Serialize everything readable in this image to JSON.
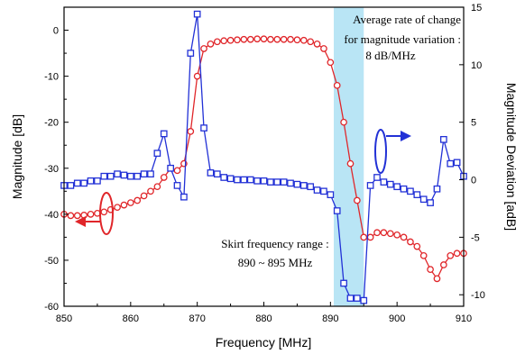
{
  "chart_data": {
    "type": "line",
    "title": "",
    "xlabel": "Frequency [MHz]",
    "ylabel_left": "Magnitude [dB]",
    "ylabel_right": "Magnitude Deviation [adB]",
    "xlim": [
      850,
      910
    ],
    "ylim_left": [
      -60,
      5
    ],
    "ylim_right": [
      -11,
      15
    ],
    "x_ticks": [
      850,
      860,
      870,
      880,
      890,
      900,
      910
    ],
    "y_left_ticks": [
      0,
      -10,
      -20,
      -30,
      -40,
      -50,
      -60
    ],
    "y_right_ticks": [
      15,
      10,
      5,
      0,
      -5,
      -10
    ],
    "grid": false,
    "series": [
      {
        "axis": "left",
        "color": "#e0262a",
        "marker": "circle",
        "x": [
          850,
          851,
          852,
          853,
          854,
          855,
          856,
          857,
          858,
          859,
          860,
          861,
          862,
          863,
          864,
          865,
          866,
          867,
          868,
          869,
          870,
          871,
          872,
          873,
          874,
          875,
          876,
          877,
          878,
          879,
          880,
          881,
          882,
          883,
          884,
          885,
          886,
          887,
          888,
          889,
          890,
          891,
          892,
          893,
          894,
          895,
          896,
          897,
          898,
          899,
          900,
          901,
          902,
          903,
          904,
          905,
          906,
          907,
          908,
          909,
          910
        ],
        "values": [
          -40,
          -40.3,
          -40.3,
          -40.2,
          -40,
          -39.8,
          -39.5,
          -39,
          -38.5,
          -38,
          -37.5,
          -37,
          -36,
          -35,
          -34,
          -32,
          -30,
          -30.5,
          -29,
          -22,
          -10,
          -4,
          -3,
          -2.5,
          -2.3,
          -2.2,
          -2.1,
          -2,
          -2,
          -1.9,
          -1.9,
          -2,
          -2,
          -2,
          -2,
          -2.1,
          -2.2,
          -2.5,
          -3,
          -4,
          -7,
          -12,
          -20,
          -29,
          -37,
          -45,
          -45,
          -44,
          -44,
          -44.2,
          -44.5,
          -45,
          -46,
          -47,
          -49,
          -52,
          -54,
          -51,
          -49,
          -48.5,
          -48.5
        ]
      },
      {
        "axis": "right",
        "color": "#2231d6",
        "marker": "square",
        "x": [
          850,
          851,
          852,
          853,
          854,
          855,
          856,
          857,
          858,
          859,
          860,
          861,
          862,
          863,
          864,
          865,
          866,
          867,
          868,
          869,
          870,
          871,
          872,
          873,
          874,
          875,
          876,
          877,
          878,
          879,
          880,
          881,
          882,
          883,
          884,
          885,
          886,
          887,
          888,
          889,
          890,
          891,
          892,
          893,
          894,
          895,
          896,
          897,
          898,
          899,
          900,
          901,
          902,
          903,
          904,
          905,
          906,
          907,
          908,
          909,
          910
        ],
        "values": [
          -0.5,
          -0.5,
          -0.3,
          -0.3,
          -0.1,
          -0.1,
          0.3,
          0.3,
          0.5,
          0.4,
          0.3,
          0.3,
          0.5,
          0.5,
          2.3,
          4,
          1,
          -0.5,
          -1.5,
          11,
          14.4,
          4.5,
          0.6,
          0.5,
          0.2,
          0.1,
          0,
          0,
          0,
          -0.1,
          -0.1,
          -0.2,
          -0.2,
          -0.2,
          -0.3,
          -0.4,
          -0.5,
          -0.6,
          -0.9,
          -1,
          -1.3,
          -2.7,
          -9,
          -10.3,
          -10.3,
          -10.5,
          -0.5,
          0.2,
          -0.2,
          -0.4,
          -0.6,
          -0.8,
          -1,
          -1.3,
          -1.7,
          -2,
          -0.8,
          3.5,
          1.4,
          1.5,
          0.3
        ]
      }
    ],
    "annotations": {
      "rate_line1": "Average rate of change",
      "rate_line2": "for magnitude variation :",
      "rate_line3": "8 dB/MHz",
      "skirt_line1": "Skirt frequency range :",
      "skirt_line2": "890 ~ 895 MHz",
      "shade_x": [
        890.5,
        895
      ]
    }
  }
}
